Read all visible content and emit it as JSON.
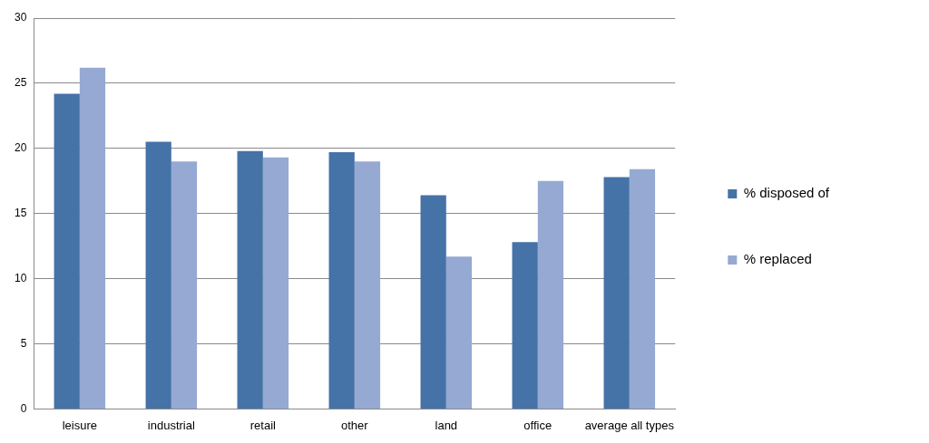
{
  "chart_data": {
    "type": "bar",
    "categories": [
      "leisure",
      "industrial",
      "retail",
      "other",
      "land",
      "office",
      "average all types"
    ],
    "series": [
      {
        "name": "% disposed of",
        "color": "#4572a7",
        "values": [
          24.2,
          20.5,
          19.8,
          19.7,
          16.4,
          12.8,
          17.8
        ]
      },
      {
        "name": "% replaced",
        "color": "#95a9d2",
        "values": [
          26.2,
          19.0,
          19.3,
          19.0,
          11.7,
          17.5,
          18.4
        ]
      }
    ],
    "ylim": [
      0,
      30
    ],
    "yticks": [
      0,
      5,
      10,
      15,
      20,
      25,
      30
    ],
    "grid": true,
    "legend": "right"
  }
}
